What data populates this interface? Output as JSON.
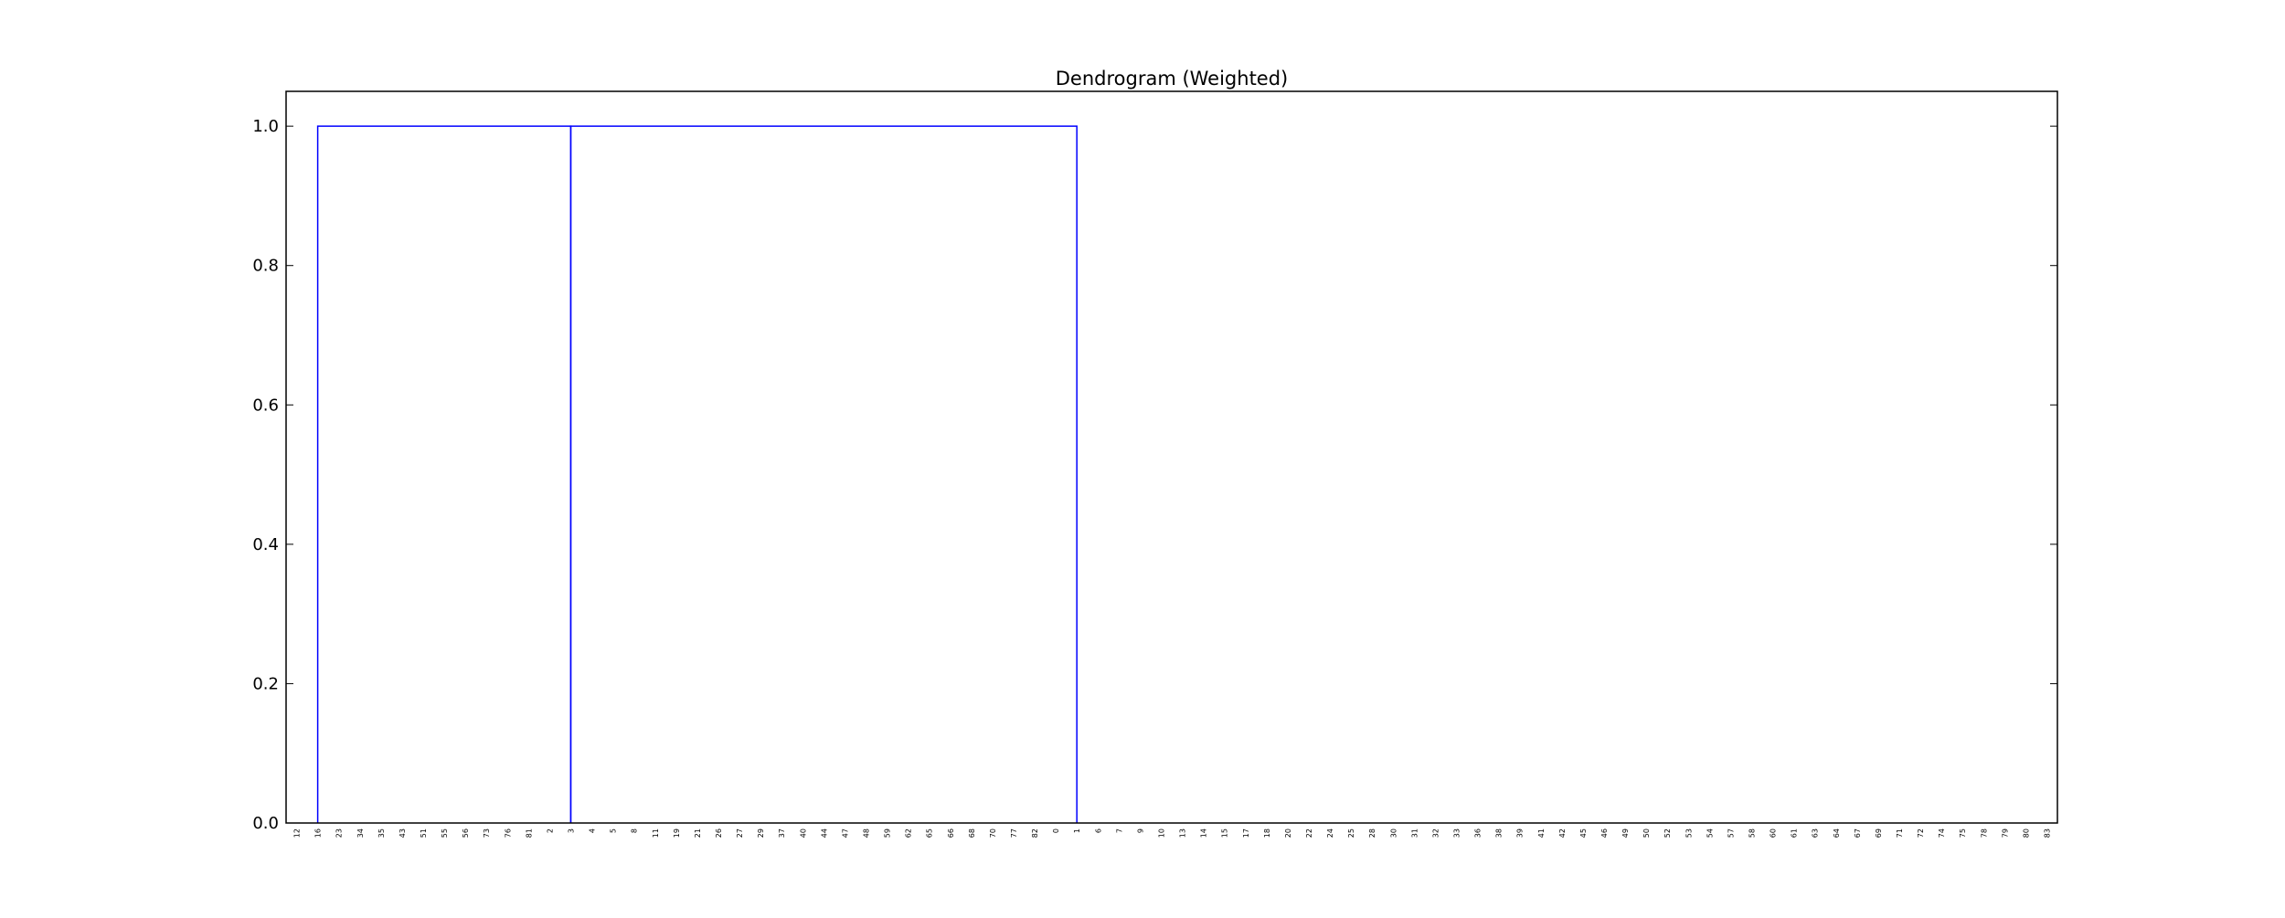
{
  "chart_data": {
    "type": "dendrogram",
    "title": "Dendrogram (Weighted)",
    "xlabel": "",
    "ylabel": "",
    "ylim": [
      0,
      1.05
    ],
    "yticks": [
      "0.0",
      "0.2",
      "0.4",
      "0.6",
      "0.8",
      "1.0"
    ],
    "ytick_values": [
      0.0,
      0.2,
      0.4,
      0.6,
      0.8,
      1.0
    ],
    "leaves": [
      "12",
      "16",
      "23",
      "34",
      "35",
      "43",
      "51",
      "55",
      "56",
      "73",
      "76",
      "81",
      "2",
      "3",
      "4",
      "5",
      "8",
      "11",
      "19",
      "21",
      "26",
      "27",
      "29",
      "37",
      "40",
      "44",
      "47",
      "48",
      "59",
      "62",
      "65",
      "66",
      "68",
      "70",
      "77",
      "82",
      "0",
      "1",
      "6",
      "7",
      "9",
      "10",
      "13",
      "14",
      "15",
      "17",
      "18",
      "20",
      "22",
      "24",
      "25",
      "28",
      "30",
      "31",
      "32",
      "33",
      "36",
      "38",
      "39",
      "41",
      "42",
      "45",
      "46",
      "49",
      "50",
      "52",
      "53",
      "54",
      "57",
      "58",
      "60",
      "61",
      "63",
      "64",
      "67",
      "69",
      "71",
      "72",
      "74",
      "75",
      "78",
      "79",
      "80",
      "83"
    ],
    "links": [
      {
        "left_leaf_index": 1,
        "right_leaf_index": 13,
        "height": 1.0
      },
      {
        "left_leaf_index": 13,
        "right_leaf_index": 37,
        "height": 1.0
      }
    ],
    "link_color": "#0000ff",
    "grid": false
  }
}
